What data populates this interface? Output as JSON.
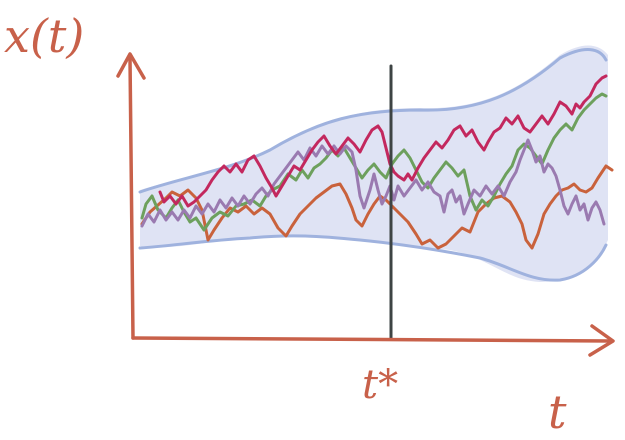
{
  "labels": {
    "y_axis": "x(t)",
    "x_axis": "t",
    "time_marker": "t*"
  },
  "colors": {
    "axis": "#c8614a",
    "band_fill": "#dfe3f4",
    "band_edge": "#9fb2de",
    "marker_line": "#3e4444",
    "path_magenta": "#c3285e",
    "path_green": "#6da05d",
    "path_purple": "#9a7ab0",
    "path_orange": "#c9623c"
  }
}
